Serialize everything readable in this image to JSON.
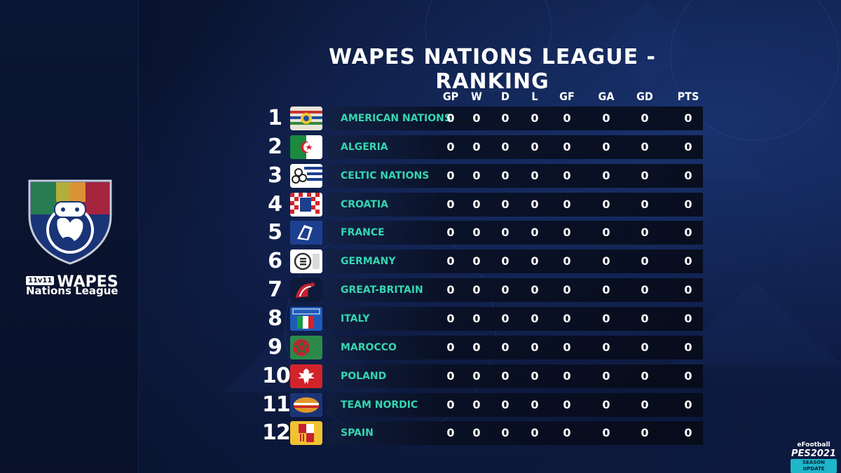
{
  "title": "WAPES NATIONS LEAGUE - RANKING",
  "columns": [
    "GP",
    "W",
    "D",
    "L",
    "GF",
    "GA",
    "GD",
    "PTS"
  ],
  "teams": [
    {
      "rank": "1",
      "name": "AMERICAN NATIONS",
      "stats": [
        "0",
        "0",
        "0",
        "0",
        "0",
        "0",
        "0",
        "0"
      ],
      "crest": "american-nations-crest-icon"
    },
    {
      "rank": "2",
      "name": "ALGERIA",
      "stats": [
        "0",
        "0",
        "0",
        "0",
        "0",
        "0",
        "0",
        "0"
      ],
      "crest": "algeria-crest-icon"
    },
    {
      "rank": "3",
      "name": "CELTIC NATIONS",
      "stats": [
        "0",
        "0",
        "0",
        "0",
        "0",
        "0",
        "0",
        "0"
      ],
      "crest": "celtic-nations-crest-icon"
    },
    {
      "rank": "4",
      "name": "CROATIA",
      "stats": [
        "0",
        "0",
        "0",
        "0",
        "0",
        "0",
        "0",
        "0"
      ],
      "crest": "croatia-crest-icon"
    },
    {
      "rank": "5",
      "name": "FRANCE",
      "stats": [
        "0",
        "0",
        "0",
        "0",
        "0",
        "0",
        "0",
        "0"
      ],
      "crest": "france-crest-icon"
    },
    {
      "rank": "6",
      "name": "GERMANY",
      "stats": [
        "0",
        "0",
        "0",
        "0",
        "0",
        "0",
        "0",
        "0"
      ],
      "crest": "germany-crest-icon"
    },
    {
      "rank": "7",
      "name": "GREAT-BRITAIN",
      "stats": [
        "0",
        "0",
        "0",
        "0",
        "0",
        "0",
        "0",
        "0"
      ],
      "crest": "great-britain-crest-icon"
    },
    {
      "rank": "8",
      "name": "ITALY",
      "stats": [
        "0",
        "0",
        "0",
        "0",
        "0",
        "0",
        "0",
        "0"
      ],
      "crest": "italy-crest-icon"
    },
    {
      "rank": "9",
      "name": "MAROCCO",
      "stats": [
        "0",
        "0",
        "0",
        "0",
        "0",
        "0",
        "0",
        "0"
      ],
      "crest": "marocco-crest-icon"
    },
    {
      "rank": "10",
      "name": "POLAND",
      "stats": [
        "0",
        "0",
        "0",
        "0",
        "0",
        "0",
        "0",
        "0"
      ],
      "crest": "poland-crest-icon"
    },
    {
      "rank": "11",
      "name": "TEAM NORDIC",
      "stats": [
        "0",
        "0",
        "0",
        "0",
        "0",
        "0",
        "0",
        "0"
      ],
      "crest": "team-nordic-crest-icon"
    },
    {
      "rank": "12",
      "name": "SPAIN",
      "stats": [
        "0",
        "0",
        "0",
        "0",
        "0",
        "0",
        "0",
        "0"
      ],
      "crest": "spain-crest-icon"
    }
  ],
  "logo": {
    "badge": "11v11",
    "brand": "WAPES",
    "subtitle": "Nations League"
  },
  "pes_logo": {
    "top": "eFootball",
    "main": "PES2021",
    "bottom": "SEASON UPDATE"
  },
  "colors": {
    "background": "#0a1330",
    "team_name": "#35d6b0",
    "text": "#ffffff"
  }
}
